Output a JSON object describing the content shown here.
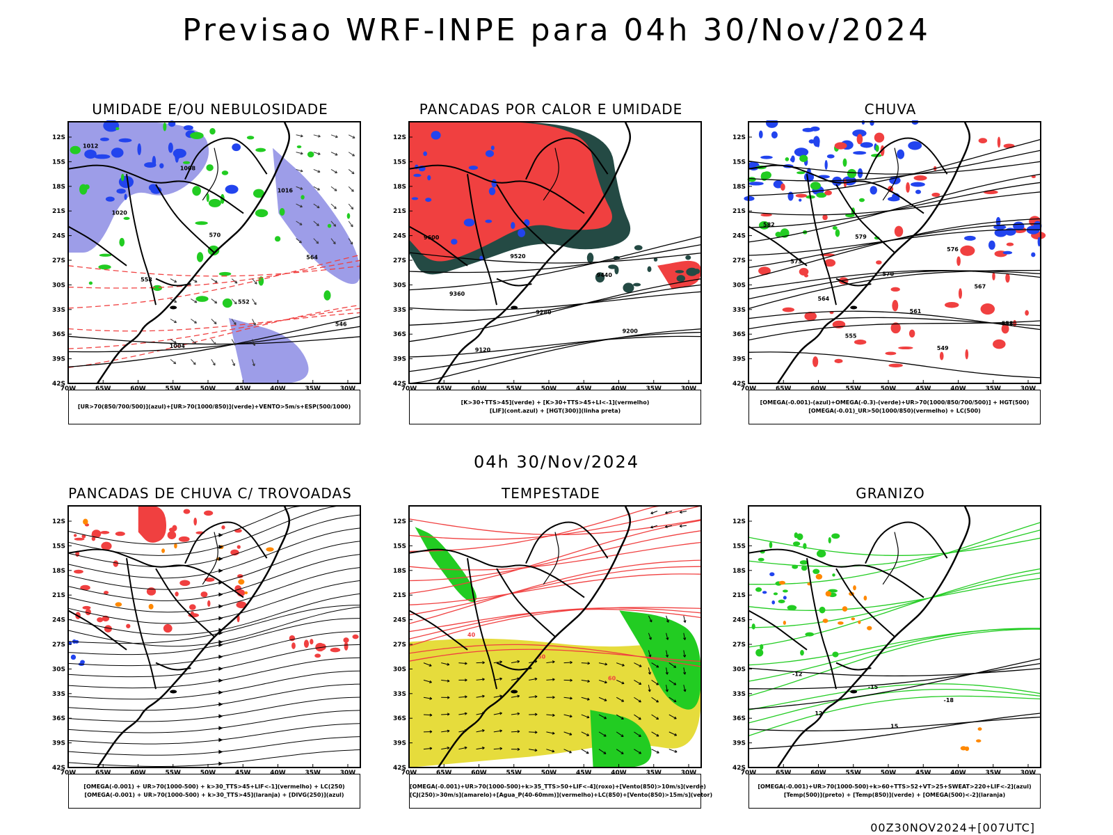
{
  "header": {
    "title": "Previsao WRF-INPE  para 04h 30/Nov/2024",
    "mid_title": "04h 30/Nov/2024",
    "footer": "00Z30NOV2024+[007UTC]"
  },
  "axes": {
    "lat_labels": [
      "12S",
      "15S",
      "18S",
      "21S",
      "24S",
      "27S",
      "30S",
      "33S",
      "36S",
      "39S",
      "42S"
    ],
    "lon_labels": [
      "70W",
      "65W",
      "60W",
      "55W",
      "50W",
      "45W",
      "40W",
      "35W",
      "30W"
    ]
  },
  "colors": {
    "red": "#f04040",
    "green": "#22cc22",
    "blue": "#2244ee",
    "lavender": "#9d9de8",
    "darkgreen": "#244a44",
    "yellow": "#e6dc3c",
    "orange": "#ff8800"
  },
  "panels": [
    {
      "title": "UMIDADE E/OU NEBULOSIDADE",
      "legend": [
        "[UR>70(850/700/500)](azul)+[UR>70(1000/850)](verde)+VENTO>5m/s+ESP(500/1000)"
      ],
      "contour_labels": [
        "1012",
        "1008",
        "1016",
        "1020",
        "570",
        "564",
        "558",
        "552",
        "546",
        "1004"
      ]
    },
    {
      "title": "PANCADAS POR CALOR E UMIDADE",
      "legend": [
        "[K>30+TTS>45](verde) + [K>30+TTS>45+LI<-1](vermelho)",
        "[LIF](cont.azul) + [HGT(300)](linha preta)"
      ],
      "contour_labels": [
        "9600",
        "9520",
        "9440",
        "9360",
        "9280",
        "9200",
        "9120"
      ]
    },
    {
      "title": "CHUVA",
      "legend": [
        "[OMEGA(-0.001)-(azul)+OMEGA(-0.3)-(verde)+UR>70(1000/850/700/500)] + HGT(500)",
        "[OMEGA(-0.01)_UR>50(1000/850)(vermelho) + LC(500)"
      ],
      "contour_labels": [
        "582",
        "579",
        "576",
        "573",
        "570",
        "567",
        "564",
        "561",
        "558",
        "555",
        "549"
      ]
    },
    {
      "title": "PANCADAS DE CHUVA C/ TROVOADAS",
      "legend": [
        "[OMEGA(-0.001) + UR>70(1000-500) + k>30_TTS>45+LIF<-1](vermelho) + LC(250)",
        "[OMEGA(-0.001) + UR>70(1000-500) + k>30_TTS>45](laranja) + [DIVG(250)](azul)"
      ],
      "contour_labels": []
    },
    {
      "title": "TEMPESTADE",
      "legend": [
        "[OMEGA(-0.001)+UR>70(1000-500)+k>35_TTS>50+LIF<-4](roxo)+[Vento(850)>10m/s](verde)",
        "[CJ(250)>30m/s](amarelo)+[Agua_P(40-60mm)](vermelho)+LC(850)+[Vento(850)>15m/s](vetor)"
      ],
      "contour_labels": [
        "40",
        "50",
        "60"
      ]
    },
    {
      "title": "GRANIZO",
      "legend": [
        "[OMEGA(-0.001)+UR>70(1000-500)+k>60+TTS>52+VT>25+SWEAT>220+LIF<-2](azul)",
        "[Temp(500)](preto) + [Temp(850)](verde) + [OMEGA(500)<-2](laranja)"
      ],
      "contour_labels": [
        "-12",
        "-15",
        "-18",
        "12",
        "15"
      ]
    }
  ]
}
